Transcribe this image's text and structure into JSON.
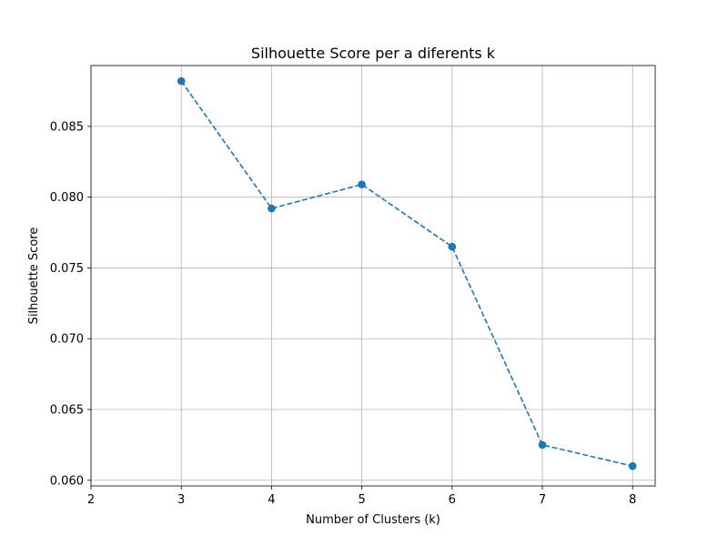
{
  "chart_data": {
    "type": "line",
    "title": "Silhouette Score per a diferents k",
    "xlabel": "Number of Clusters (k)",
    "ylabel": "Silhouette Score",
    "x": [
      3,
      4,
      5,
      6,
      7,
      8
    ],
    "series": [
      {
        "values": [
          0.0882,
          0.0792,
          0.0809,
          0.0765,
          0.0625,
          0.061
        ],
        "color": "#1f77b4",
        "line_style": "dashed",
        "marker": "circle"
      }
    ],
    "xlim": [
      2,
      8.25
    ],
    "ylim": [
      0.0596,
      0.0893
    ],
    "xticks": [
      "2",
      "3",
      "4",
      "5",
      "6",
      "7",
      "8"
    ],
    "yticks": [
      "0.060",
      "0.065",
      "0.070",
      "0.075",
      "0.080",
      "0.085"
    ],
    "grid": true
  }
}
